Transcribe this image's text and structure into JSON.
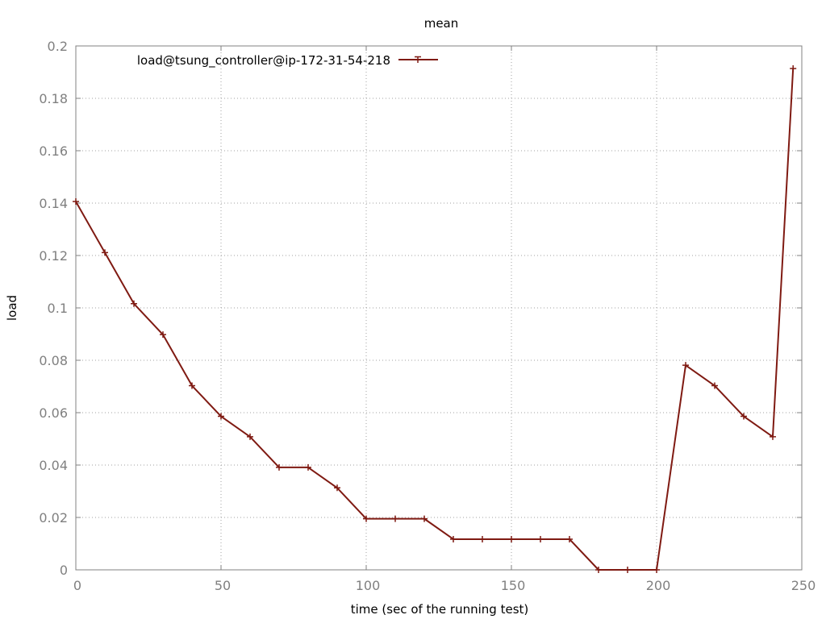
{
  "chart_data": {
    "type": "line",
    "title": "mean",
    "xlabel": "time (sec of the running test)",
    "ylabel": "load",
    "xlim": [
      0,
      250
    ],
    "ylim": [
      0,
      0.2
    ],
    "xticks": [
      0,
      50,
      100,
      150,
      200,
      250
    ],
    "xtick_labels": [
      "0",
      "50",
      "100",
      "150",
      "200",
      "250"
    ],
    "yticks": [
      0,
      0.02,
      0.04,
      0.06,
      0.08,
      0.1,
      0.12,
      0.14,
      0.16,
      0.18,
      0.2
    ],
    "ytick_labels": [
      "0",
      "0.02",
      "0.04",
      "0.06",
      "0.08",
      "0.1",
      "0.12",
      "0.14",
      "0.16",
      "0.18",
      "0.2"
    ],
    "grid": true,
    "legend_position": "top-left",
    "series": [
      {
        "name": "load@tsung_controller@ip-172-31-54-218",
        "color": "#7f1a12",
        "marker": "plus",
        "x": [
          0,
          10,
          20,
          30,
          40,
          50,
          60,
          70,
          80,
          90,
          100,
          110,
          120,
          130,
          140,
          150,
          160,
          170,
          180,
          190,
          200,
          210,
          220,
          230,
          240,
          247
        ],
        "y": [
          0.1406,
          0.1211,
          0.1016,
          0.0898,
          0.0703,
          0.0586,
          0.0508,
          0.0391,
          0.0391,
          0.0313,
          0.0195,
          0.0195,
          0.0195,
          0.0117,
          0.0117,
          0.0117,
          0.0117,
          0.0117,
          0.0,
          0.0,
          0.0,
          0.0781,
          0.0703,
          0.0586,
          0.0508,
          0.1914
        ]
      }
    ]
  }
}
